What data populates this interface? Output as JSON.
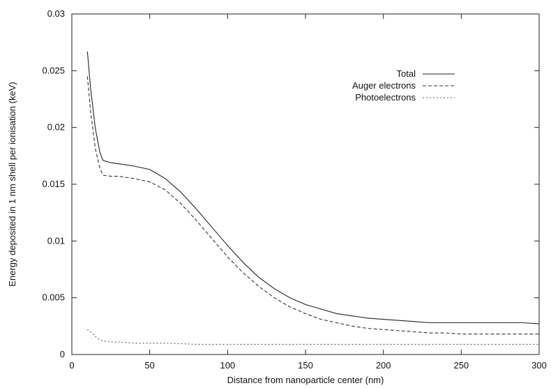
{
  "chart_data": {
    "type": "line",
    "title": "",
    "xlabel": "Distance from nanoparticle center (nm)",
    "ylabel": "Energy deposited in 1 nm shell per ionisation (keV)",
    "xlim": [
      0,
      300
    ],
    "ylim": [
      0,
      0.03
    ],
    "x_ticks": [
      "0",
      "50",
      "100",
      "150",
      "200",
      "250",
      "300"
    ],
    "y_ticks": [
      "0",
      "0.005",
      "0.01",
      "0.015",
      "0.02",
      "0.025",
      "0.03"
    ],
    "grid": false,
    "legend_position": "top-right",
    "series": [
      {
        "name": "Total",
        "style": "solid",
        "color": "#222222",
        "x": [
          10,
          12,
          15,
          18,
          20,
          25,
          30,
          40,
          50,
          60,
          70,
          80,
          90,
          100,
          110,
          120,
          130,
          140,
          150,
          160,
          170,
          180,
          190,
          200,
          210,
          220,
          230,
          240,
          250,
          260,
          270,
          280,
          290,
          300
        ],
        "y": [
          0.0267,
          0.0235,
          0.02,
          0.0178,
          0.0171,
          0.0169,
          0.0168,
          0.0166,
          0.0163,
          0.0155,
          0.0143,
          0.0128,
          0.0112,
          0.0096,
          0.0081,
          0.0068,
          0.0058,
          0.005,
          0.0044,
          0.004,
          0.0036,
          0.0034,
          0.0032,
          0.0031,
          0.003,
          0.0029,
          0.0028,
          0.0028,
          0.0028,
          0.0028,
          0.0028,
          0.0028,
          0.0028,
          0.0027
        ]
      },
      {
        "name": "Auger electrons",
        "style": "dashed",
        "color": "#333333",
        "x": [
          10,
          12,
          15,
          18,
          20,
          25,
          30,
          40,
          50,
          60,
          70,
          80,
          90,
          100,
          110,
          120,
          130,
          140,
          150,
          160,
          170,
          180,
          190,
          200,
          210,
          220,
          230,
          240,
          250,
          260,
          270,
          280,
          290,
          300
        ],
        "y": [
          0.0245,
          0.0215,
          0.0182,
          0.0164,
          0.0158,
          0.0157,
          0.0157,
          0.0155,
          0.0152,
          0.0145,
          0.0133,
          0.0118,
          0.0102,
          0.0086,
          0.0072,
          0.006,
          0.005,
          0.0042,
          0.0036,
          0.0031,
          0.0028,
          0.0025,
          0.0023,
          0.0022,
          0.0021,
          0.002,
          0.0019,
          0.0019,
          0.0018,
          0.0018,
          0.0018,
          0.0018,
          0.0018,
          0.0018
        ]
      },
      {
        "name": "Photoelectrons",
        "style": "dotted",
        "color": "#555555",
        "x": [
          10,
          12,
          15,
          18,
          20,
          25,
          30,
          40,
          50,
          60,
          80,
          100,
          120,
          150,
          200,
          250,
          300
        ],
        "y": [
          0.0022,
          0.002,
          0.0016,
          0.0013,
          0.0012,
          0.0011,
          0.0011,
          0.001,
          0.001,
          0.001,
          0.0009,
          0.0009,
          0.0009,
          0.0009,
          0.0009,
          0.0009,
          0.0009
        ]
      }
    ]
  }
}
